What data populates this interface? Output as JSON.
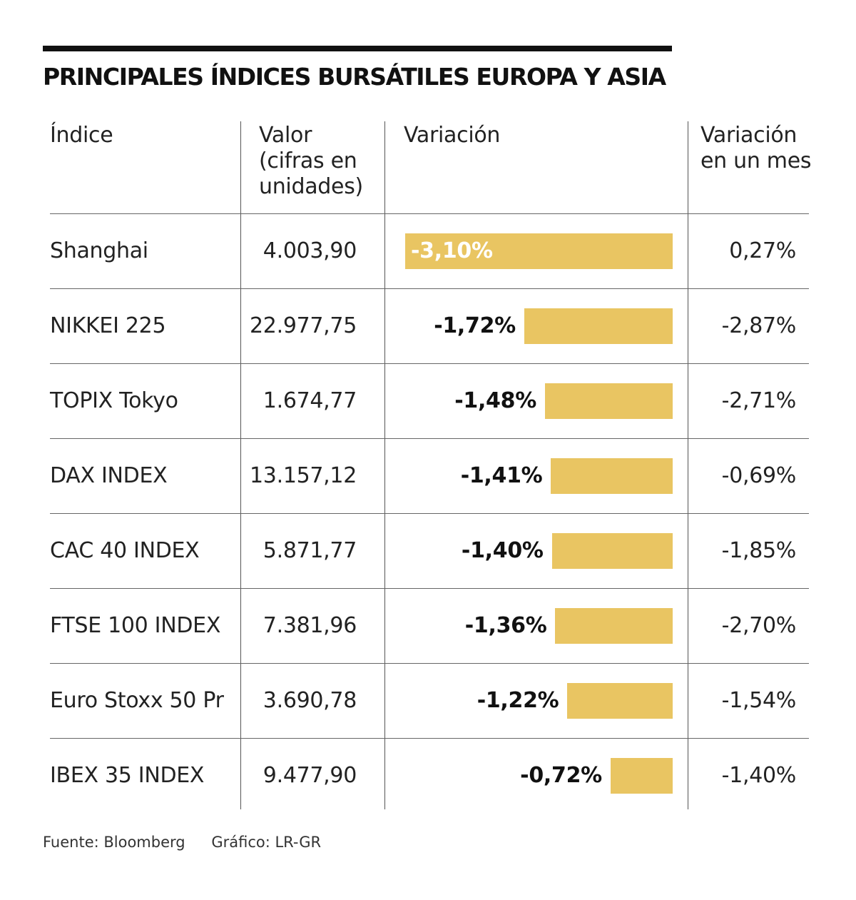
{
  "title": "PRINCIPALES ÍNDICES BURSÁTILES EUROPA Y ASIA",
  "headers": {
    "indice": [
      "Índice"
    ],
    "valor": [
      "Valor",
      "(cifras en",
      "unidades)"
    ],
    "variacion": [
      "Variación"
    ],
    "variacion_mes": [
      "Variación",
      "en un mes"
    ]
  },
  "chart_data": {
    "type": "table",
    "title": "PRINCIPALES ÍNDICES BURSÁTILES EUROPA Y ASIA",
    "rows": [
      {
        "name": "Shanghai",
        "valor": "4.003,90",
        "variacion": -3.1,
        "variacion_label": "-3,10%",
        "variacion_mes": "0,27%"
      },
      {
        "name": "NIKKEI 225",
        "valor": "22.977,75",
        "variacion": -1.72,
        "variacion_label": "-1,72%",
        "variacion_mes": "-2,87%"
      },
      {
        "name": "TOPIX Tokyo",
        "valor": "1.674,77",
        "variacion": -1.48,
        "variacion_label": "-1,48%",
        "variacion_mes": "-2,71%"
      },
      {
        "name": "DAX INDEX",
        "valor": "13.157,12",
        "variacion": -1.41,
        "variacion_label": "-1,41%",
        "variacion_mes": "-0,69%"
      },
      {
        "name": "CAC 40 INDEX",
        "valor": "5.871,77",
        "variacion": -1.4,
        "variacion_label": "-1,40%",
        "variacion_mes": "-1,85%"
      },
      {
        "name": "FTSE 100 INDEX",
        "valor": "7.381,96",
        "variacion": -1.36,
        "variacion_label": "-1,36%",
        "variacion_mes": "-2,70%"
      },
      {
        "name": "Euro Stoxx 50 Pr",
        "valor": "3.690,78",
        "variacion": -1.22,
        "variacion_label": "-1,22%",
        "variacion_mes": "-1,54%"
      },
      {
        "name": "IBEX 35 INDEX",
        "valor": "9.477,90",
        "variacion": -0.72,
        "variacion_label": "-0,72%",
        "variacion_mes": "-1,40%"
      }
    ],
    "bar_color": "#e9c562"
  },
  "footer": {
    "source": "Fuente: Bloomberg",
    "credit": "Gráfico: LR-GR"
  }
}
